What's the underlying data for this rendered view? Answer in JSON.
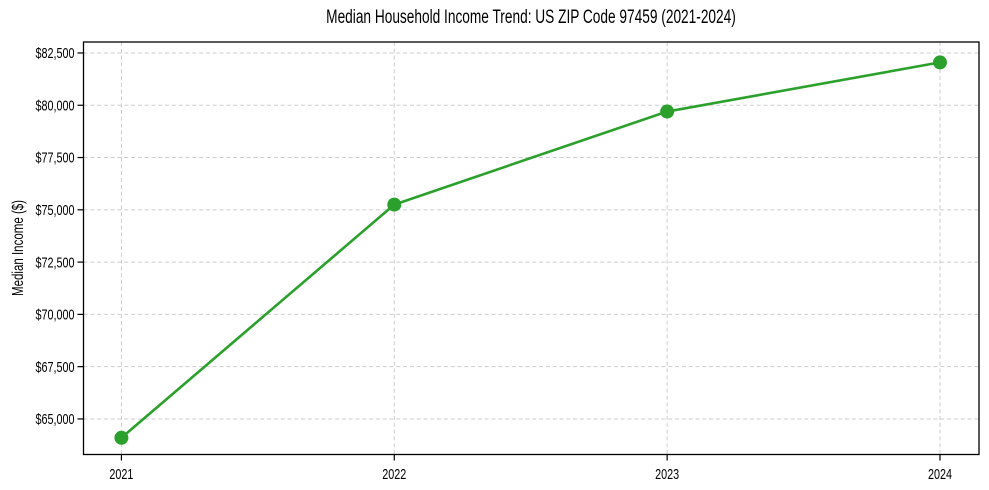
{
  "chart_data": {
    "type": "line",
    "title": "Median Household Income Trend: US ZIP Code 97459 (2021-2024)",
    "xlabel": "",
    "ylabel": "Median Income ($)",
    "x": [
      2021,
      2022,
      2023,
      2024
    ],
    "values": [
      64100,
      75250,
      79700,
      82050
    ],
    "x_tick_labels": [
      "2021",
      "2022",
      "2023",
      "2024"
    ],
    "y_ticks": [
      65000,
      67500,
      70000,
      72500,
      75000,
      77500,
      80000,
      82500
    ],
    "y_tick_labels": [
      "$65,000",
      "$67,500",
      "$70,000",
      "$72,500",
      "$75,000",
      "$77,500",
      "$80,000",
      "$82,500"
    ],
    "xlim": [
      2020.861,
      2024.143
    ],
    "ylim": [
      63300,
      83025
    ],
    "grid": "dashed",
    "legend": "none",
    "line_color": "#2ca02c",
    "grid_color": "#cdcdcd",
    "marker": "circle",
    "background": "#ffffff"
  }
}
